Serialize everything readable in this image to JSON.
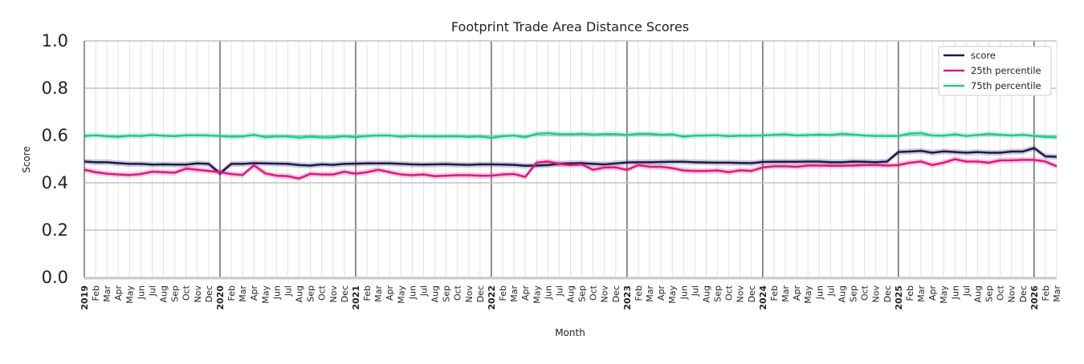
{
  "chart_data": {
    "type": "line",
    "title": "Footprint Trade Area Distance Scores",
    "xlabel": "Month",
    "ylabel": "Score",
    "ylim": [
      0,
      1
    ],
    "yticks": [
      "0.0",
      "0.2",
      "0.4",
      "0.6",
      "0.8",
      "1.0"
    ],
    "grid": true,
    "legend_placement": "top-right",
    "x_start": "2019-01",
    "x_end": "2026-03",
    "month_labels": [
      "Jan",
      "Feb",
      "Mar",
      "Apr",
      "May",
      "Jun",
      "Jul",
      "Aug",
      "Sep",
      "Oct",
      "Nov",
      "Dec"
    ],
    "series": [
      {
        "name": "score",
        "color": "#1b1a4f",
        "values": [
          0.49,
          0.487,
          0.487,
          0.483,
          0.48,
          0.48,
          0.477,
          0.478,
          0.477,
          0.477,
          0.482,
          0.48,
          0.44,
          0.48,
          0.48,
          0.483,
          0.482,
          0.481,
          0.48,
          0.475,
          0.473,
          0.478,
          0.476,
          0.48,
          0.481,
          0.482,
          0.482,
          0.482,
          0.48,
          0.478,
          0.477,
          0.478,
          0.479,
          0.477,
          0.476,
          0.478,
          0.478,
          0.477,
          0.476,
          0.472,
          0.473,
          0.475,
          0.48,
          0.482,
          0.483,
          0.48,
          0.478,
          0.482,
          0.486,
          0.487,
          0.487,
          0.488,
          0.489,
          0.489,
          0.487,
          0.486,
          0.485,
          0.485,
          0.484,
          0.483,
          0.488,
          0.489,
          0.489,
          0.489,
          0.49,
          0.49,
          0.487,
          0.487,
          0.49,
          0.489,
          0.487,
          0.49,
          0.53,
          0.532,
          0.535,
          0.527,
          0.533,
          0.53,
          0.527,
          0.53,
          0.527,
          0.527,
          0.532,
          0.532,
          0.547,
          0.512,
          0.51
        ]
      },
      {
        "name": "25th percentile",
        "color": "#e0177f",
        "values": [
          0.455,
          0.445,
          0.438,
          0.435,
          0.433,
          0.437,
          0.447,
          0.445,
          0.443,
          0.46,
          0.455,
          0.45,
          0.445,
          0.437,
          0.433,
          0.474,
          0.44,
          0.43,
          0.428,
          0.418,
          0.438,
          0.435,
          0.435,
          0.447,
          0.438,
          0.445,
          0.455,
          0.445,
          0.435,
          0.432,
          0.435,
          0.428,
          0.43,
          0.432,
          0.432,
          0.43,
          0.43,
          0.435,
          0.437,
          0.425,
          0.485,
          0.49,
          0.48,
          0.475,
          0.478,
          0.455,
          0.465,
          0.465,
          0.455,
          0.475,
          0.468,
          0.468,
          0.462,
          0.452,
          0.45,
          0.45,
          0.452,
          0.445,
          0.453,
          0.45,
          0.465,
          0.47,
          0.47,
          0.468,
          0.473,
          0.473,
          0.472,
          0.472,
          0.473,
          0.475,
          0.475,
          0.473,
          0.475,
          0.485,
          0.49,
          0.475,
          0.485,
          0.5,
          0.49,
          0.49,
          0.485,
          0.495,
          0.495,
          0.497,
          0.497,
          0.49,
          0.47
        ]
      },
      {
        "name": "75th percentile",
        "color": "#1fcc8a",
        "values": [
          0.598,
          0.601,
          0.597,
          0.594,
          0.599,
          0.598,
          0.602,
          0.599,
          0.597,
          0.601,
          0.601,
          0.6,
          0.598,
          0.595,
          0.596,
          0.603,
          0.593,
          0.596,
          0.596,
          0.591,
          0.595,
          0.592,
          0.592,
          0.597,
          0.593,
          0.598,
          0.6,
          0.6,
          0.595,
          0.598,
          0.596,
          0.596,
          0.596,
          0.597,
          0.594,
          0.596,
          0.59,
          0.597,
          0.6,
          0.593,
          0.607,
          0.61,
          0.606,
          0.605,
          0.607,
          0.604,
          0.606,
          0.606,
          0.602,
          0.607,
          0.607,
          0.603,
          0.605,
          0.595,
          0.599,
          0.6,
          0.601,
          0.597,
          0.599,
          0.599,
          0.6,
          0.603,
          0.605,
          0.6,
          0.602,
          0.604,
          0.602,
          0.607,
          0.604,
          0.6,
          0.598,
          0.598,
          0.598,
          0.608,
          0.61,
          0.6,
          0.599,
          0.605,
          0.598,
          0.602,
          0.607,
          0.603,
          0.6,
          0.603,
          0.598,
          0.594,
          0.592
        ]
      }
    ]
  }
}
